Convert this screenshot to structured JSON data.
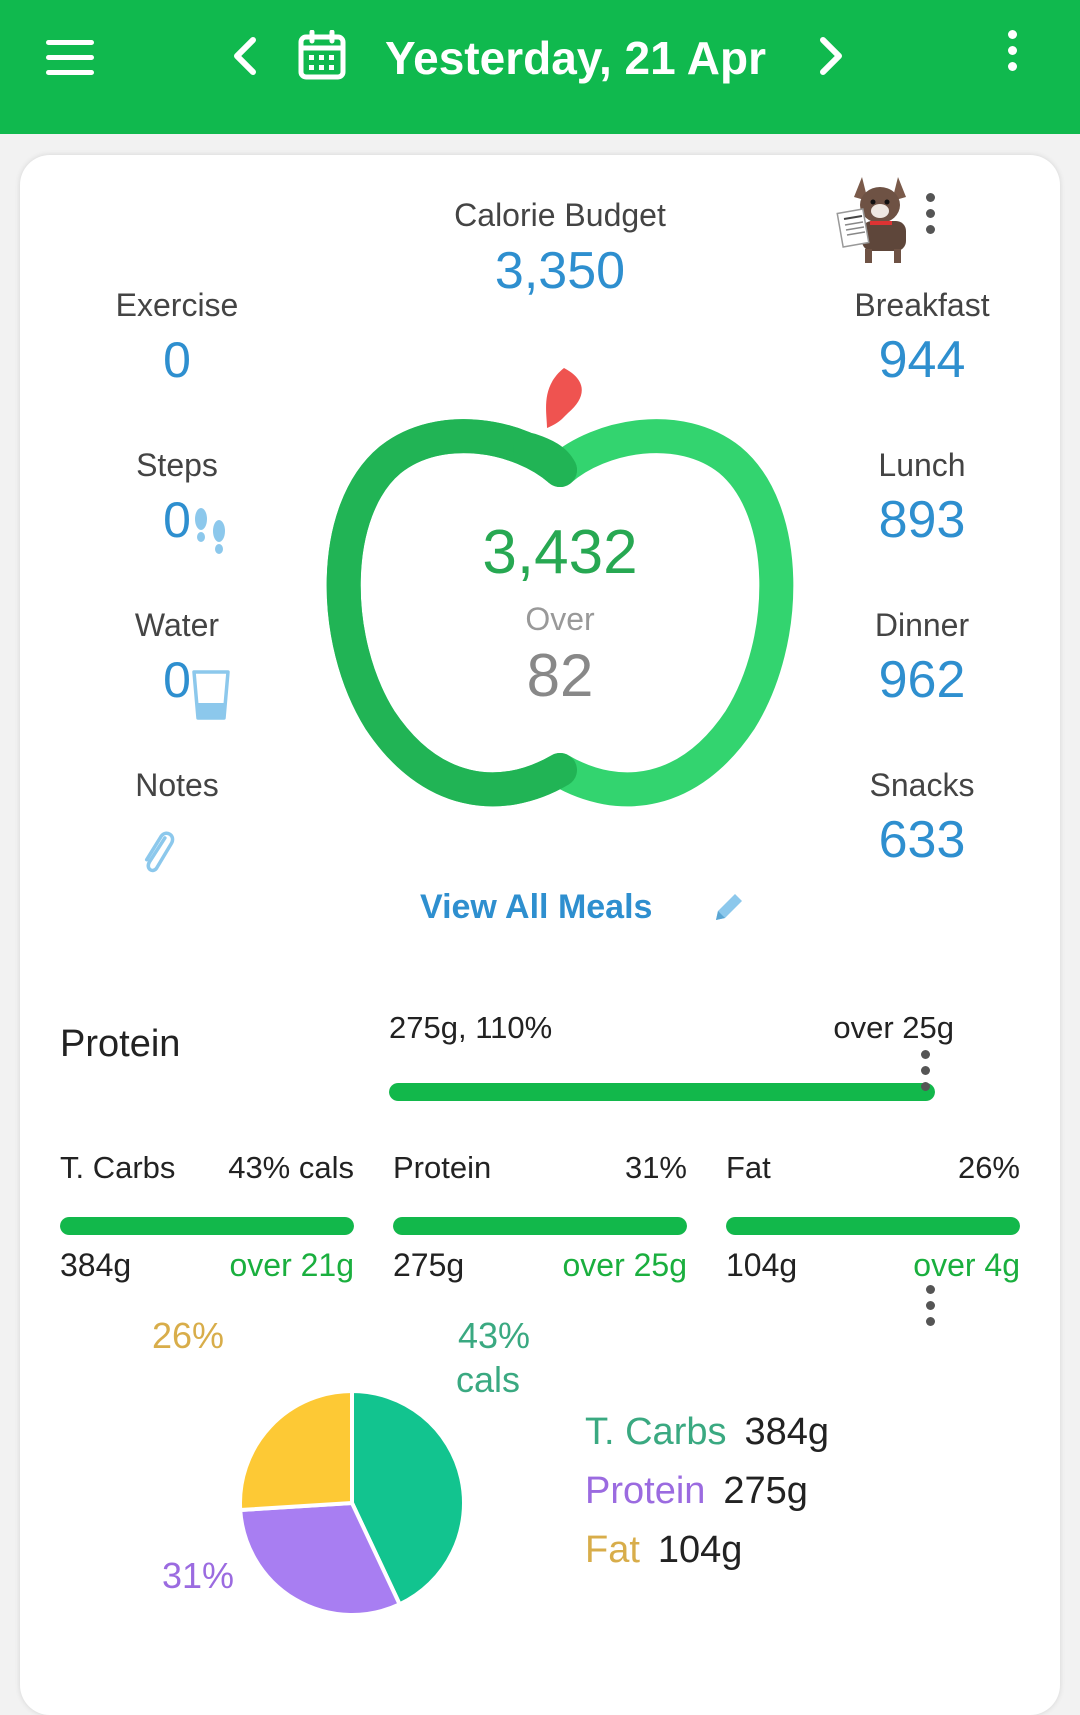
{
  "header": {
    "date_title": "Yesterday, 21 Apr",
    "icons": [
      "menu-icon",
      "chevron-left-icon",
      "calendar-icon",
      "chevron-right-icon",
      "more-vert-icon"
    ]
  },
  "summary": {
    "budget_label": "Calorie Budget",
    "budget_value": "3,350",
    "eaten_value": "3,432",
    "over_label": "Over",
    "over_value": "82",
    "view_all_label": "View All Meals",
    "left_stats": {
      "exercise": {
        "label": "Exercise",
        "value": "0"
      },
      "steps": {
        "label": "Steps",
        "value": "0"
      },
      "water": {
        "label": "Water",
        "value": "0"
      },
      "notes": {
        "label": "Notes"
      }
    },
    "meals": {
      "breakfast": {
        "label": "Breakfast",
        "value": "944"
      },
      "lunch": {
        "label": "Lunch",
        "value": "893"
      },
      "dinner": {
        "label": "Dinner",
        "value": "962"
      },
      "snacks": {
        "label": "Snacks",
        "value": "633"
      }
    }
  },
  "focus_macro": {
    "name": "Protein",
    "amount_pct": "275g, 110%",
    "over": "over 25g",
    "progress": 1.0
  },
  "macros": [
    {
      "name": "T. Carbs",
      "pct": "43% cals",
      "grams": "384g",
      "over": "over 21g",
      "progress": 1.0
    },
    {
      "name": "Protein",
      "pct": "31%",
      "grams": "275g",
      "over": "over 25g",
      "progress": 1.0
    },
    {
      "name": "Fat",
      "pct": "26%",
      "grams": "104g",
      "over": "over 4g",
      "progress": 1.0
    }
  ],
  "pie": {
    "labels": {
      "carbs": "43%",
      "carbs_unit": "cals",
      "protein": "31%",
      "fat": "26%"
    },
    "legend": [
      {
        "name": "T. Carbs",
        "grams": "384g",
        "color": "#3aa981"
      },
      {
        "name": "Protein",
        "grams": "275g",
        "color": "#9b6be0"
      },
      {
        "name": "Fat",
        "grams": "104g",
        "color": "#d8ad4a"
      }
    ]
  },
  "chart_data": {
    "type": "pie",
    "categories": [
      "T. Carbs",
      "Protein",
      "Fat"
    ],
    "values": [
      43,
      31,
      26
    ],
    "colors": [
      "#12c48f",
      "#a87ef2",
      "#fdc935"
    ]
  },
  "colors": {
    "brand_green": "#10b94e",
    "value_blue": "#2e8fcf",
    "over_green": "#1aaf3e"
  }
}
